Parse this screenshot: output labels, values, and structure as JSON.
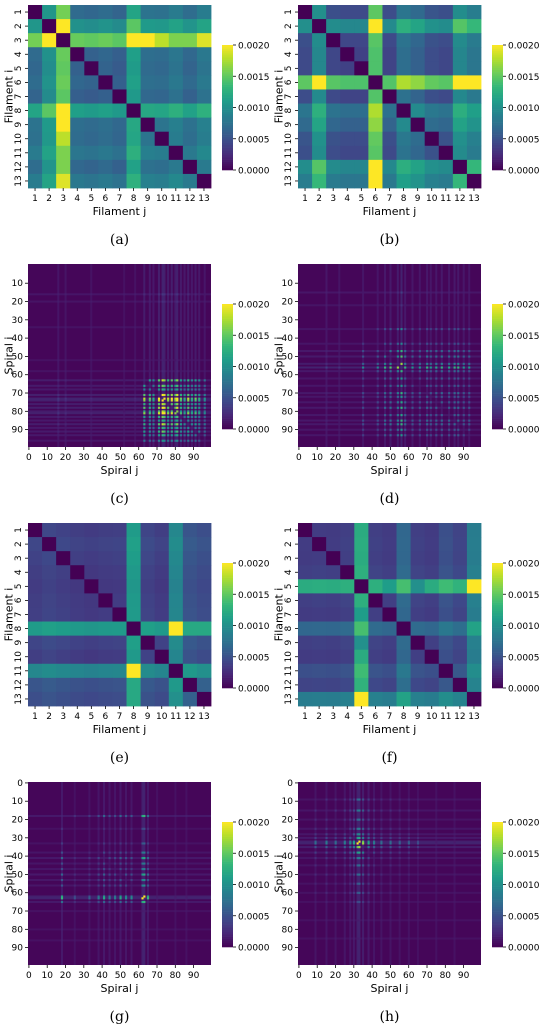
{
  "colorbar": {
    "min": 0,
    "max": 0.002,
    "ticks": [
      "0.0000",
      "0.0005",
      "0.0010",
      "0.0015",
      "0.0020"
    ],
    "colormap": [
      "#440154",
      "#482878",
      "#3e4989",
      "#31688e",
      "#26828e",
      "#1f9e89",
      "#35b779",
      "#6ece58",
      "#b5de2b",
      "#fde725"
    ]
  },
  "chart_data": [
    {
      "id": "a",
      "caption": "(a)",
      "type": "heatmap",
      "size": 13,
      "xlabel": "Filament j",
      "ylabel": "Filament i",
      "tick_values": [
        1,
        2,
        3,
        4,
        5,
        6,
        7,
        8,
        9,
        10,
        11,
        12,
        13
      ],
      "base_values": [
        0.00049,
        0.00081,
        0.00133,
        0.00045,
        0.00042,
        0.00046,
        0.0004,
        0.00092,
        0.00052,
        0.0005,
        0.00059,
        0.00047,
        0.0006
      ],
      "hot_pairs": [
        [
          3,
          2,
          0.002
        ],
        [
          3,
          8,
          0.002
        ],
        [
          3,
          9,
          0.002
        ],
        [
          3,
          10,
          0.0018
        ],
        [
          3,
          13,
          0.0019
        ],
        [
          3,
          11,
          0.0016
        ],
        [
          3,
          12,
          0.0016
        ]
      ]
    },
    {
      "id": "b",
      "caption": "(b)",
      "type": "heatmap",
      "size": 13,
      "xlabel": "Filament j",
      "ylabel": "Filament i",
      "tick_values": [
        1,
        2,
        3,
        4,
        5,
        6,
        7,
        8,
        9,
        10,
        11,
        12,
        13
      ],
      "base_values": [
        0.00038,
        0.00086,
        0.00036,
        0.00032,
        0.00032,
        0.00136,
        0.00034,
        0.00065,
        0.00055,
        0.0004,
        0.00036,
        0.00085,
        0.00072
      ],
      "hot_pairs": [
        [
          6,
          2,
          0.002
        ],
        [
          6,
          12,
          0.002
        ],
        [
          6,
          13,
          0.002
        ]
      ]
    },
    {
      "id": "c",
      "caption": "(c)",
      "type": "heatmap",
      "size": 100,
      "xlabel": "Spiral j",
      "ylabel": "Spiral i",
      "x_ticks": [
        0,
        10,
        20,
        30,
        40,
        50,
        60,
        70,
        80,
        90
      ],
      "y_ticks": [
        10,
        20,
        30,
        40,
        50,
        60,
        70,
        80,
        90
      ],
      "base_level": 3e-05,
      "active_rows": [
        [
          16,
          0.35
        ],
        [
          20,
          0.3
        ],
        [
          34,
          0.25
        ],
        [
          52,
          0.2
        ],
        [
          58,
          0.25
        ],
        [
          63,
          0.7
        ],
        [
          66,
          0.6
        ],
        [
          68,
          0.5
        ],
        [
          71,
          0.8
        ],
        [
          73,
          1.0
        ],
        [
          74,
          0.9
        ],
        [
          76,
          0.7
        ],
        [
          78,
          0.8
        ],
        [
          80,
          0.7
        ],
        [
          81,
          0.9
        ],
        [
          83,
          0.6
        ],
        [
          85,
          0.5
        ],
        [
          87,
          0.7
        ],
        [
          89,
          0.5
        ],
        [
          91,
          0.6
        ],
        [
          93,
          0.5
        ],
        [
          96,
          0.4
        ]
      ],
      "interaction_zone": [
        60,
        99
      ],
      "scale": 0.0026
    },
    {
      "id": "d",
      "caption": "(d)",
      "type": "heatmap",
      "size": 100,
      "xlabel": "Spiral j",
      "ylabel": "Spiral i",
      "x_ticks": [
        0,
        10,
        20,
        30,
        40,
        50,
        60,
        70,
        80,
        90
      ],
      "y_ticks": [
        10,
        20,
        30,
        40,
        50,
        60,
        70,
        80,
        90
      ],
      "base_level": 3e-05,
      "active_rows": [
        [
          15,
          0.4
        ],
        [
          22,
          0.3
        ],
        [
          35,
          0.35
        ],
        [
          43,
          0.35
        ],
        [
          47,
          0.5
        ],
        [
          50,
          0.55
        ],
        [
          54,
          0.65
        ],
        [
          56,
          1.0
        ],
        [
          58,
          0.5
        ],
        [
          62,
          0.4
        ],
        [
          66,
          0.4
        ],
        [
          70,
          0.5
        ],
        [
          72,
          0.4
        ],
        [
          75,
          0.45
        ],
        [
          78,
          0.5
        ],
        [
          82,
          0.45
        ],
        [
          85,
          0.5
        ],
        [
          87,
          0.5
        ],
        [
          90,
          0.4
        ],
        [
          93,
          0.4
        ]
      ],
      "interaction_zone": [
        30,
        99
      ],
      "scale": 0.0026
    },
    {
      "id": "e",
      "caption": "(e)",
      "type": "heatmap",
      "size": 13,
      "xlabel": "Filament j",
      "ylabel": "Filament i",
      "tick_values": [
        1,
        2,
        3,
        4,
        5,
        6,
        7,
        8,
        9,
        10,
        11,
        12,
        13
      ],
      "base_values": [
        0.00032,
        0.00036,
        0.00033,
        0.0003,
        0.00028,
        0.0003,
        0.00031,
        0.00102,
        0.00035,
        0.0003,
        0.00086,
        0.00046,
        0.00041
      ],
      "hot_pairs": [
        [
          8,
          11,
          0.002
        ],
        [
          8,
          13,
          0.0012
        ],
        [
          8,
          12,
          0.0012
        ],
        [
          11,
          13,
          0.001
        ]
      ]
    },
    {
      "id": "f",
      "caption": "(f)",
      "type": "heatmap",
      "size": 13,
      "xlabel": "Filament j",
      "ylabel": "Filament i",
      "tick_values": [
        1,
        2,
        3,
        4,
        5,
        6,
        7,
        8,
        9,
        10,
        11,
        12,
        13
      ],
      "base_values": [
        0.0003,
        0.00031,
        0.0003,
        0.00033,
        0.00118,
        0.00033,
        0.0003,
        0.00061,
        0.00033,
        0.0003,
        0.00044,
        0.00036,
        0.00079
      ],
      "hot_pairs": [
        [
          5,
          13,
          0.002
        ],
        [
          5,
          8,
          0.0014
        ],
        [
          5,
          7,
          0.0011
        ],
        [
          5,
          9,
          0.001
        ]
      ]
    },
    {
      "id": "g",
      "caption": "(g)",
      "type": "heatmap",
      "size": 100,
      "xlabel": "Spiral j",
      "ylabel": "Spiral i",
      "x_ticks": [
        0,
        10,
        20,
        30,
        40,
        50,
        60,
        70,
        80,
        90
      ],
      "y_ticks": [
        0,
        10,
        20,
        30,
        40,
        50,
        60,
        70,
        80,
        90
      ],
      "base_level": 3e-05,
      "active_rows": [
        [
          18,
          0.55
        ],
        [
          25,
          0.2
        ],
        [
          33,
          0.25
        ],
        [
          38,
          0.35
        ],
        [
          41,
          0.5
        ],
        [
          44,
          0.35
        ],
        [
          47,
          0.35
        ],
        [
          50,
          0.5
        ],
        [
          53,
          0.4
        ],
        [
          56,
          0.4
        ],
        [
          62,
          0.9
        ],
        [
          63,
          1.0
        ],
        [
          65,
          0.55
        ],
        [
          70,
          0.2
        ],
        [
          80,
          0.2
        ],
        [
          86,
          0.2
        ]
      ],
      "interaction_zone": [
        15,
        68
      ],
      "scale": 0.0024
    },
    {
      "id": "h",
      "caption": "(h)",
      "type": "heatmap",
      "size": 100,
      "xlabel": "Spiral j",
      "ylabel": "Spiral i",
      "x_ticks": [
        0,
        10,
        20,
        30,
        40,
        50,
        60,
        70,
        80,
        90
      ],
      "y_ticks": [
        0,
        10,
        20,
        30,
        40,
        50,
        60,
        70,
        80,
        90
      ],
      "base_level": 3e-05,
      "active_rows": [
        [
          9,
          0.3
        ],
        [
          15,
          0.35
        ],
        [
          20,
          0.3
        ],
        [
          25,
          0.35
        ],
        [
          28,
          0.4
        ],
        [
          30,
          0.5
        ],
        [
          32,
          0.9
        ],
        [
          33,
          1.0
        ],
        [
          35,
          0.7
        ],
        [
          38,
          0.5
        ],
        [
          41,
          0.35
        ],
        [
          45,
          0.3
        ],
        [
          50,
          0.3
        ],
        [
          55,
          0.25
        ],
        [
          60,
          0.25
        ],
        [
          65,
          0.2
        ],
        [
          75,
          0.2
        ],
        [
          85,
          0.2
        ]
      ],
      "interaction_zone": [
        5,
        70
      ],
      "scale": 0.0024
    }
  ]
}
